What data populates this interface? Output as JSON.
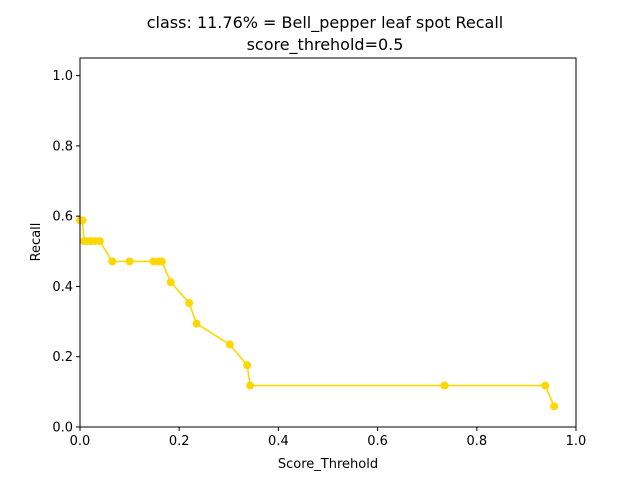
{
  "chart_data": {
    "type": "line",
    "title": "class: 11.76% = Bell_pepper leaf spot Recall",
    "subtitle": "score_threhold=0.5",
    "xlabel": "Score_Threhold",
    "ylabel": "Recall",
    "xlim": [
      0.0,
      1.0
    ],
    "ylim": [
      0.0,
      1.05
    ],
    "xticks": [
      "0.0",
      "0.2",
      "0.4",
      "0.6",
      "0.8",
      "1.0"
    ],
    "yticks": [
      "0.0",
      "0.2",
      "0.4",
      "0.6",
      "0.8",
      "1.0"
    ],
    "grid": false,
    "series": [
      {
        "color": "#FFD700",
        "x": [
          0.0,
          0.005,
          0.008,
          0.015,
          0.022,
          0.03,
          0.04,
          0.065,
          0.1,
          0.148,
          0.158,
          0.165,
          0.183,
          0.22,
          0.235,
          0.302,
          0.337,
          0.343,
          0.735,
          0.938,
          0.956
        ],
        "y": [
          0.588,
          0.588,
          0.529,
          0.529,
          0.529,
          0.529,
          0.529,
          0.471,
          0.471,
          0.471,
          0.471,
          0.471,
          0.412,
          0.353,
          0.294,
          0.235,
          0.176,
          0.118,
          0.118,
          0.118,
          0.059
        ]
      }
    ]
  }
}
